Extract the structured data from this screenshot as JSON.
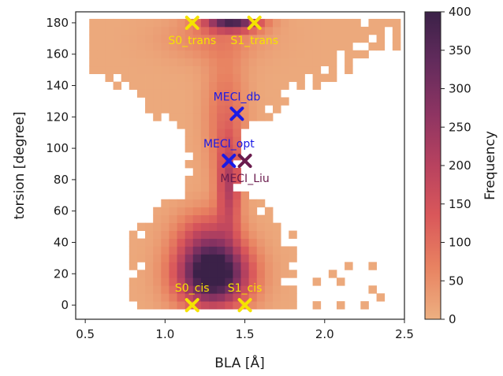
{
  "chart_data": {
    "type": "heatmap",
    "xlabel": "BLA [Å]",
    "ylabel": "torsion [degree]",
    "xlim": [
      0.44,
      2.5
    ],
    "ylim": [
      -9,
      187
    ],
    "x_ticks": [
      0.5,
      1.0,
      1.5,
      2.0,
      2.5
    ],
    "x_tick_labels": [
      "0.5",
      "1.0",
      "1.5",
      "2.0",
      "2.5"
    ],
    "y_ticks": [
      0,
      20,
      40,
      60,
      80,
      100,
      120,
      140,
      160,
      180
    ],
    "y_tick_labels": [
      "0",
      "20",
      "40",
      "60",
      "80",
      "100",
      "120",
      "140",
      "160",
      "180"
    ],
    "bin_width_x": 0.05,
    "bin_height_y": 5,
    "colorbar": {
      "label": "Frequency",
      "min": 0,
      "max": 400,
      "ticks": [
        0,
        50,
        100,
        150,
        200,
        250,
        300,
        350,
        400
      ],
      "tick_labels": [
        "0",
        "50",
        "100",
        "150",
        "200",
        "250",
        "300",
        "350",
        "400"
      ],
      "colormap": [
        "#edb081",
        "#e88261",
        "#d9575a",
        "#b8425f",
        "#8d3462",
        "#622b5c",
        "#3b2148"
      ]
    },
    "annotations": [
      {
        "label": "S0_trans",
        "x": 1.17,
        "y": 180,
        "color": "#f5e300",
        "label_position": "below"
      },
      {
        "label": "S1_trans",
        "x": 1.56,
        "y": 180,
        "color": "#f5e300",
        "label_position": "below"
      },
      {
        "label": "MECI_db",
        "x": 1.45,
        "y": 122,
        "color": "#1a1ae6",
        "label_position": "above"
      },
      {
        "label": "MECI_opt",
        "x": 1.4,
        "y": 92,
        "color": "#1a1ae6",
        "label_position": "above"
      },
      {
        "label": "MECI_Liu",
        "x": 1.5,
        "y": 92,
        "color": "#6a1b4d",
        "label_position": "below"
      },
      {
        "label": "S0_cis",
        "x": 1.17,
        "y": 0,
        "color": "#f5e300",
        "label_position": "above"
      },
      {
        "label": "S1_cis",
        "x": 1.5,
        "y": 0,
        "color": "#f5e300",
        "label_position": "above"
      }
    ]
  }
}
